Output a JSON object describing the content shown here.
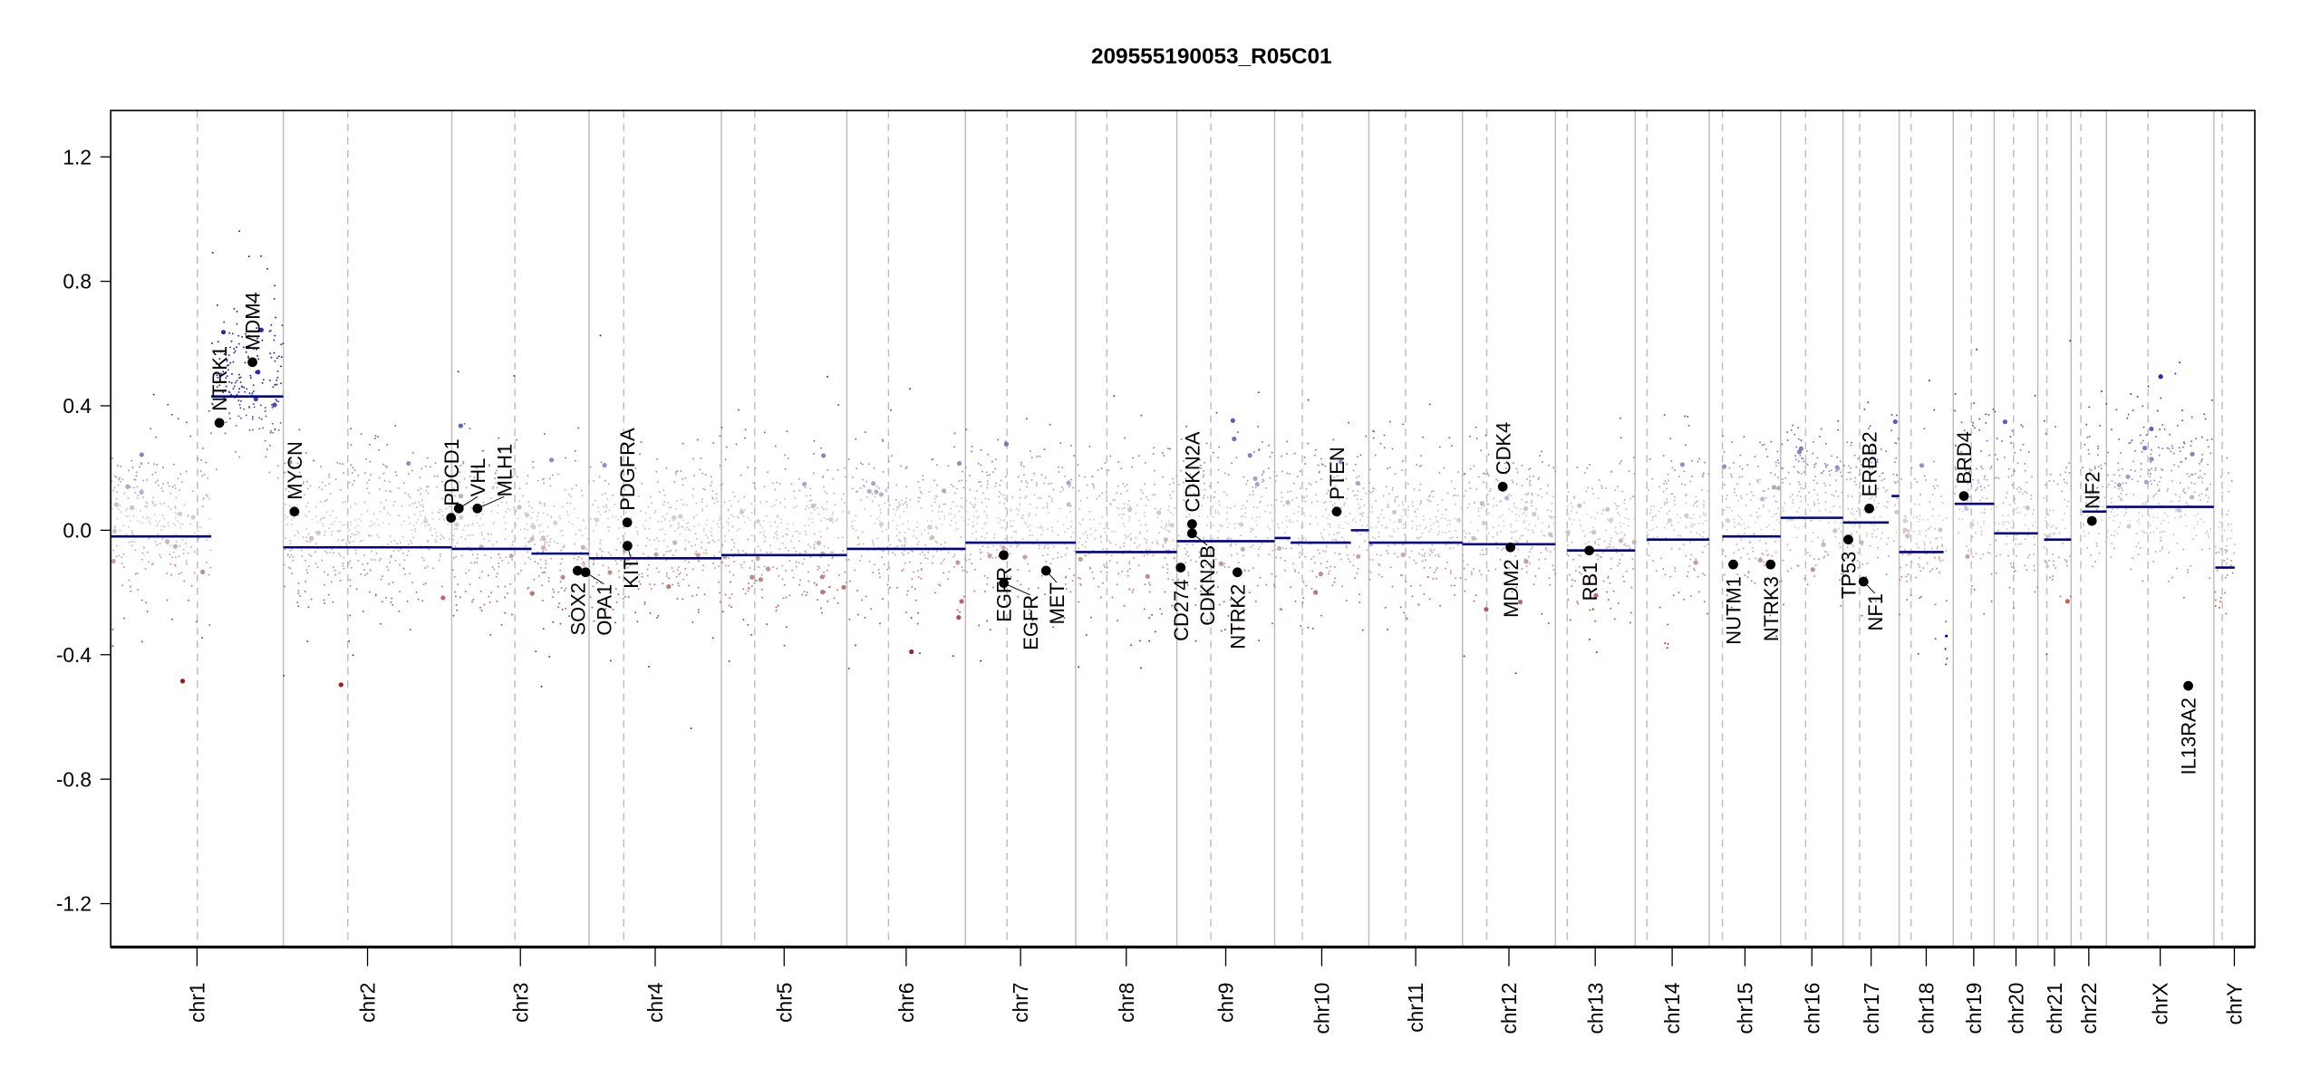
{
  "chart_data": {
    "type": "scatter",
    "title": "209555190053_R05C01",
    "xlabel": "",
    "ylabel": "",
    "ylim": [
      -1.35,
      1.35
    ],
    "y_ticks": [
      "1.2",
      "0.8",
      "0.4",
      "0.0",
      "-0.4",
      "-0.8",
      "-1.2"
    ],
    "y_tick_values": [
      1.2,
      0.8,
      0.4,
      0.0,
      -0.4,
      -0.8,
      -1.2
    ],
    "colors": {
      "gain": "#2c2ca8",
      "neutral": "#d3d3d3",
      "loss": "#a01818",
      "segment": "#00008b",
      "gene": "#000000"
    },
    "chromosomes": [
      {
        "name": "chr1",
        "length_mb": 249,
        "centromere_mb": 125
      },
      {
        "name": "chr2",
        "length_mb": 243,
        "centromere_mb": 93
      },
      {
        "name": "chr3",
        "length_mb": 198,
        "centromere_mb": 91
      },
      {
        "name": "chr4",
        "length_mb": 191,
        "centromere_mb": 50
      },
      {
        "name": "chr5",
        "length_mb": 181,
        "centromere_mb": 48
      },
      {
        "name": "chr6",
        "length_mb": 171,
        "centromere_mb": 60
      },
      {
        "name": "chr7",
        "length_mb": 159,
        "centromere_mb": 60
      },
      {
        "name": "chr8",
        "length_mb": 146,
        "centromere_mb": 45
      },
      {
        "name": "chr9",
        "length_mb": 141,
        "centromere_mb": 49
      },
      {
        "name": "chr10",
        "length_mb": 136,
        "centromere_mb": 40
      },
      {
        "name": "chr11",
        "length_mb": 135,
        "centromere_mb": 53
      },
      {
        "name": "chr12",
        "length_mb": 134,
        "centromere_mb": 35
      },
      {
        "name": "chr13",
        "length_mb": 115,
        "centromere_mb": 17
      },
      {
        "name": "chr14",
        "length_mb": 107,
        "centromere_mb": 17
      },
      {
        "name": "chr15",
        "length_mb": 103,
        "centromere_mb": 19
      },
      {
        "name": "chr16",
        "length_mb": 90,
        "centromere_mb": 36
      },
      {
        "name": "chr17",
        "length_mb": 81,
        "centromere_mb": 24
      },
      {
        "name": "chr18",
        "length_mb": 78,
        "centromere_mb": 17
      },
      {
        "name": "chr19",
        "length_mb": 59,
        "centromere_mb": 26
      },
      {
        "name": "chr20",
        "length_mb": 63,
        "centromere_mb": 28
      },
      {
        "name": "chr21",
        "length_mb": 48,
        "centromere_mb": 13
      },
      {
        "name": "chr22",
        "length_mb": 51,
        "centromere_mb": 14
      },
      {
        "name": "chrX",
        "length_mb": 155,
        "centromere_mb": 60
      },
      {
        "name": "chrY",
        "length_mb": 59,
        "centromere_mb": 12
      }
    ],
    "segments": [
      {
        "chr": "chr1",
        "start": 0,
        "end": 145,
        "mean": -0.02
      },
      {
        "chr": "chr1",
        "start": 145,
        "end": 249,
        "mean": 0.43
      },
      {
        "chr": "chr2",
        "start": 0,
        "end": 243,
        "mean": -0.055
      },
      {
        "chr": "chr3",
        "start": 0,
        "end": 115,
        "mean": -0.06
      },
      {
        "chr": "chr3",
        "start": 115,
        "end": 198,
        "mean": -0.075
      },
      {
        "chr": "chr4",
        "start": 0,
        "end": 191,
        "mean": -0.09
      },
      {
        "chr": "chr5",
        "start": 0,
        "end": 181,
        "mean": -0.08
      },
      {
        "chr": "chr6",
        "start": 0,
        "end": 171,
        "mean": -0.06
      },
      {
        "chr": "chr7",
        "start": 0,
        "end": 159,
        "mean": -0.04
      },
      {
        "chr": "chr8",
        "start": 0,
        "end": 146,
        "mean": -0.07
      },
      {
        "chr": "chr9",
        "start": 0,
        "end": 141,
        "mean": -0.035
      },
      {
        "chr": "chr10",
        "start": 0,
        "end": 23,
        "mean": -0.025
      },
      {
        "chr": "chr10",
        "start": 23,
        "end": 110,
        "mean": -0.04
      },
      {
        "chr": "chr10",
        "start": 110,
        "end": 136,
        "mean": 0.0
      },
      {
        "chr": "chr11",
        "start": 0,
        "end": 135,
        "mean": -0.04
      },
      {
        "chr": "chr12",
        "start": 0,
        "end": 134,
        "mean": -0.045
      },
      {
        "chr": "chr13",
        "start": 17,
        "end": 115,
        "mean": -0.065
      },
      {
        "chr": "chr14",
        "start": 17,
        "end": 107,
        "mean": -0.03
      },
      {
        "chr": "chr15",
        "start": 19,
        "end": 103,
        "mean": -0.02
      },
      {
        "chr": "chr16",
        "start": 0,
        "end": 90,
        "mean": 0.04
      },
      {
        "chr": "chr17",
        "start": 0,
        "end": 66,
        "mean": 0.025
      },
      {
        "chr": "chr17",
        "start": 70,
        "end": 81,
        "mean": 0.11
      },
      {
        "chr": "chr18",
        "start": 0,
        "end": 64,
        "mean": -0.07
      },
      {
        "chr": "chr18",
        "start": 66,
        "end": 70,
        "mean": -0.34
      },
      {
        "chr": "chr19",
        "start": 2,
        "end": 59,
        "mean": 0.085
      },
      {
        "chr": "chr20",
        "start": 0,
        "end": 63,
        "mean": -0.01
      },
      {
        "chr": "chr21",
        "start": 9,
        "end": 48,
        "mean": -0.03
      },
      {
        "chr": "chr22",
        "start": 16,
        "end": 51,
        "mean": 0.06
      },
      {
        "chr": "chrX",
        "start": 0,
        "end": 155,
        "mean": 0.075
      },
      {
        "chr": "chrY",
        "start": 2,
        "end": 30,
        "mean": -0.12
      }
    ],
    "genes": [
      {
        "name": "NTRK1",
        "chr": "chr1",
        "pos": 156.8,
        "value": 0.345
      },
      {
        "name": "MDM4",
        "chr": "chr1",
        "pos": 204.5,
        "value": 0.54
      },
      {
        "name": "MYCN",
        "chr": "chr2",
        "pos": 16,
        "value": 0.06
      },
      {
        "name": "PDCD1",
        "chr": "chr2",
        "pos": 242.0,
        "value": 0.04
      },
      {
        "name": "VHL",
        "chr": "chr3",
        "pos": 10.2,
        "value": 0.07
      },
      {
        "name": "MLH1",
        "chr": "chr3",
        "pos": 37,
        "value": 0.07
      },
      {
        "name": "SOX2",
        "chr": "chr3",
        "pos": 181.4,
        "value": -0.13
      },
      {
        "name": "OPA1",
        "chr": "chr3",
        "pos": 193,
        "value": -0.135
      },
      {
        "name": "KIT",
        "chr": "chr4",
        "pos": 55.5,
        "value": -0.05
      },
      {
        "name": "PDGFRA",
        "chr": "chr4",
        "pos": 55.1,
        "value": 0.025
      },
      {
        "name": "EGFR",
        "chr": "chr7",
        "pos": 55.2,
        "value": -0.08
      },
      {
        "name": "EGFR",
        "chr": "chr7",
        "pos": 55.3,
        "value": -0.17
      },
      {
        "name": "MET",
        "chr": "chr7",
        "pos": 116.3,
        "value": -0.13
      },
      {
        "name": "CD274",
        "chr": "chr9",
        "pos": 5.5,
        "value": -0.12
      },
      {
        "name": "CDKN2A",
        "chr": "chr9",
        "pos": 21.97,
        "value": 0.02
      },
      {
        "name": "CDKN2B",
        "chr": "chr9",
        "pos": 22.0,
        "value": -0.01
      },
      {
        "name": "NTRK2",
        "chr": "chr9",
        "pos": 87.3,
        "value": -0.135
      },
      {
        "name": "PTEN",
        "chr": "chr10",
        "pos": 89.6,
        "value": 0.06
      },
      {
        "name": "CDK4",
        "chr": "chr12",
        "pos": 58.1,
        "value": 0.14
      },
      {
        "name": "MDM2",
        "chr": "chr12",
        "pos": 69.2,
        "value": -0.055
      },
      {
        "name": "RB1",
        "chr": "chr13",
        "pos": 48.9,
        "value": -0.065
      },
      {
        "name": "NUTM1",
        "chr": "chr15",
        "pos": 34.6,
        "value": -0.11
      },
      {
        "name": "NTRK3",
        "chr": "chr15",
        "pos": 88.5,
        "value": -0.11
      },
      {
        "name": "TP53",
        "chr": "chr17",
        "pos": 7.6,
        "value": -0.03
      },
      {
        "name": "NF1",
        "chr": "chr17",
        "pos": 29.5,
        "value": -0.165
      },
      {
        "name": "ERBB2",
        "chr": "chr17",
        "pos": 37.8,
        "value": 0.07
      },
      {
        "name": "BRD4",
        "chr": "chr19",
        "pos": 15.3,
        "value": 0.11
      },
      {
        "name": "NF2",
        "chr": "chr22",
        "pos": 30,
        "value": 0.03
      },
      {
        "name": "IL13RA2",
        "chr": "chrX",
        "pos": 118,
        "value": -0.5
      }
    ]
  }
}
